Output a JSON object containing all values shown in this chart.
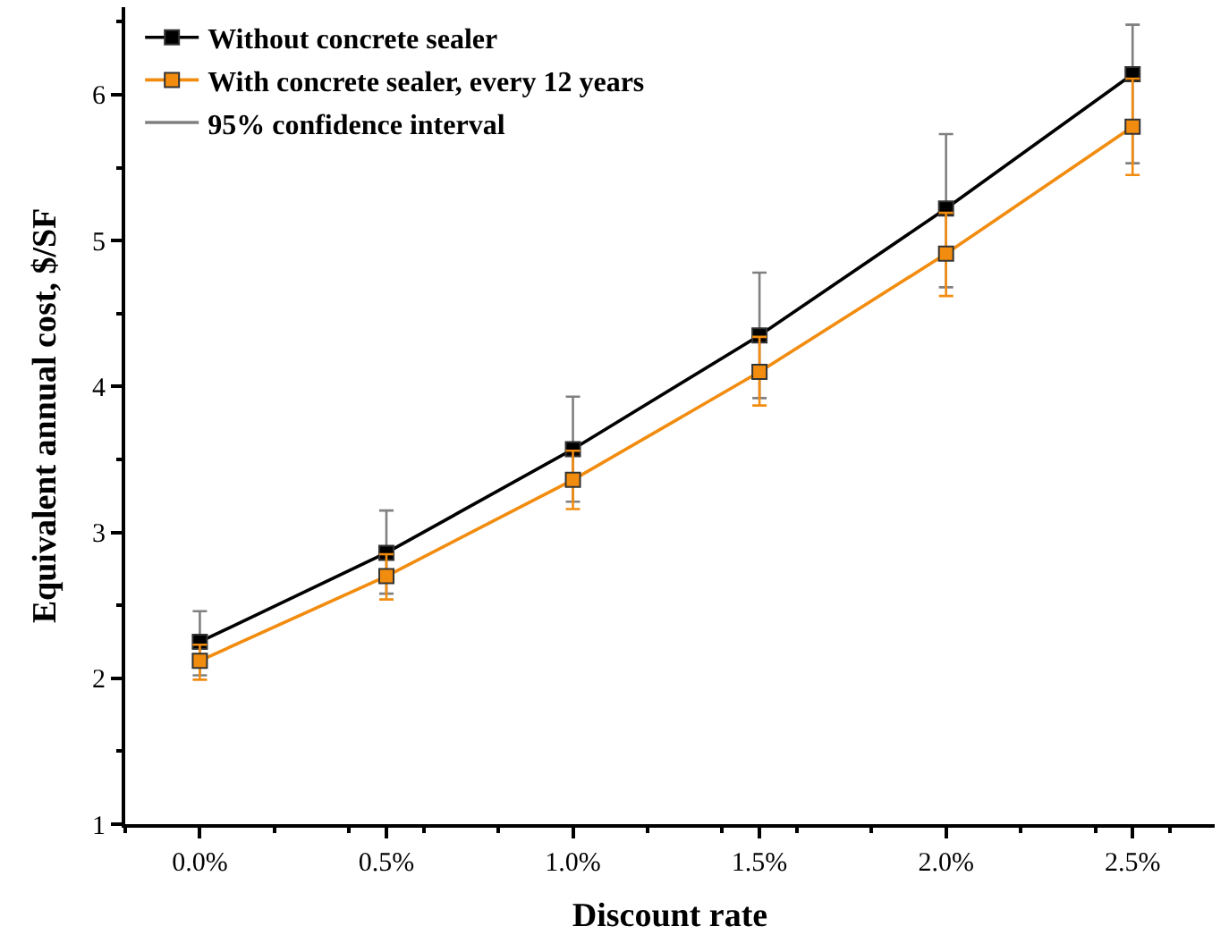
{
  "chart_data": {
    "type": "line",
    "xlabel": "Discount rate",
    "ylabel": "Equivalent annual cost, $/SF",
    "x": [
      0,
      0.5,
      1.0,
      1.5,
      2.0,
      2.5
    ],
    "xlim": [
      -0.2,
      2.72
    ],
    "xticks": [
      {
        "value": 0,
        "label": "0.0%"
      },
      {
        "value": 0.5,
        "label": "0.5%"
      },
      {
        "value": 1.0,
        "label": "1.0%"
      },
      {
        "value": 1.5,
        "label": "1.5%"
      },
      {
        "value": 2.0,
        "label": "2.0%"
      },
      {
        "value": 2.5,
        "label": "2.5%"
      }
    ],
    "ylim": [
      1,
      6.6
    ],
    "yticks": [
      1,
      2,
      3,
      4,
      5,
      6
    ],
    "series": [
      {
        "name": "Without concrete sealer",
        "color": "#000000",
        "values": [
          2.25,
          2.86,
          3.57,
          4.35,
          5.22,
          6.14
        ],
        "errors": [
          [
            2.02,
            2.46
          ],
          [
            2.58,
            3.15
          ],
          [
            3.21,
            3.93
          ],
          [
            3.92,
            4.78
          ],
          [
            4.68,
            5.73
          ],
          [
            5.53,
            6.48
          ]
        ]
      },
      {
        "name": "With concrete sealer, every 12 years",
        "color": "#f28c0f",
        "values": [
          2.12,
          2.7,
          3.36,
          4.1,
          4.91,
          5.78
        ],
        "errors": [
          [
            1.99,
            2.23
          ],
          [
            2.54,
            2.85
          ],
          [
            3.16,
            3.56
          ],
          [
            3.87,
            4.34
          ],
          [
            4.62,
            5.19
          ],
          [
            5.45,
            6.11
          ]
        ]
      },
      {
        "name": "95% confidence interval",
        "color": "#808080",
        "values": [
          null,
          null,
          null,
          null,
          null,
          null
        ],
        "marker": "none"
      }
    ],
    "marker": "square",
    "line_style": "solid",
    "legend": "top left"
  }
}
